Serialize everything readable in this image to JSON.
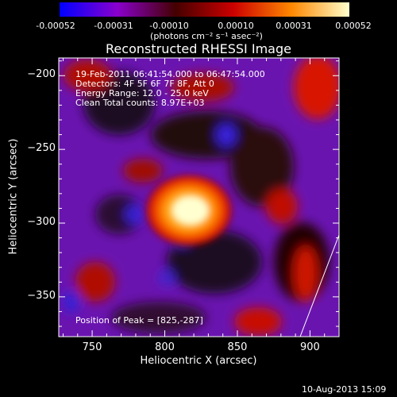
{
  "chart_data": {
    "type": "heatmap",
    "title": "Reconstructed RHESSI Image",
    "xlabel": "Heliocentric X (arcsec)",
    "ylabel": "Heliocentric Y (arcsec)",
    "xlim": [
      727,
      920
    ],
    "ylim": [
      -377,
      -188
    ],
    "xticks": [
      750,
      800,
      850,
      900
    ],
    "yticks": [
      -200,
      -250,
      -300,
      -350
    ],
    "colorbar": {
      "range": [
        -0.00052,
        0.00052
      ],
      "ticks": [
        -0.00052,
        -0.00031,
        -0.0001,
        0.0001,
        0.00031,
        0.00052
      ],
      "tick_labels": [
        "-0.00052",
        "-0.00031",
        "-0.00010",
        "0.00010",
        "0.00031",
        "0.00052"
      ],
      "unit_label": "(photons cm⁻² s⁻¹ asec⁻²)",
      "colors": [
        "#0000ff",
        "#8a00cc",
        "#440000",
        "#cc0000",
        "#ff8800",
        "#ffffcc"
      ]
    },
    "info_lines": [
      "19-Feb-2011 06:41:54.000 to 06:47:54.000",
      "Detectors: 4F 5F 6F 7F 8F, Att 0",
      "Energy Range: 12.0 - 25.0 keV",
      "Clean     Total counts: 8.97E+03"
    ],
    "peak_label": "Position of Peak = [825,-287]",
    "peak": [
      825,
      -287
    ],
    "timestamp": "10-Aug-2013 15:09"
  }
}
